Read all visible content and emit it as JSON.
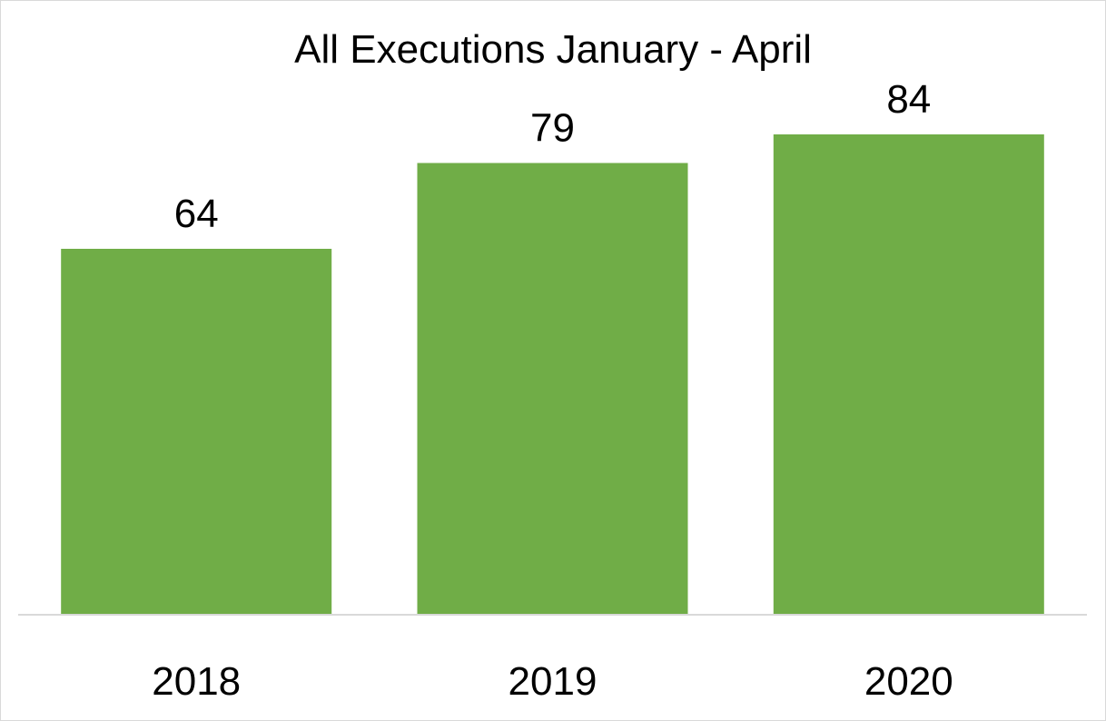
{
  "chart_data": {
    "type": "bar",
    "title": "All Executions January - April",
    "categories": [
      "2018",
      "2019",
      "2020"
    ],
    "values": [
      64,
      79,
      84
    ],
    "data_labels": [
      "64",
      "79",
      "84"
    ],
    "xlabel": "",
    "ylabel": "",
    "ylim": [
      0,
      84
    ],
    "grid": false,
    "legend": "none",
    "bar_color": "#70AD47",
    "axis_color": "#D9D9D9"
  }
}
